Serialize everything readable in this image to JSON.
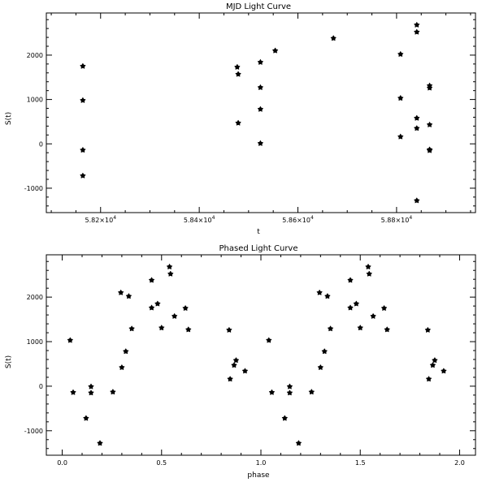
{
  "chart_data": [
    {
      "type": "scatter",
      "title": "MJD Light Curve",
      "xlabel": "t",
      "ylabel": "S(t)",
      "xlim": [
        58090,
        58960
      ],
      "ylim": [
        -1550,
        2950
      ],
      "xticks": [
        {
          "value": 58200,
          "mantissa": "5.82",
          "exp": "4"
        },
        {
          "value": 58400,
          "mantissa": "5.84",
          "exp": "4"
        },
        {
          "value": 58600,
          "mantissa": "5.86",
          "exp": "4"
        },
        {
          "value": 58800,
          "mantissa": "5.88",
          "exp": "4"
        }
      ],
      "yticks": [
        -1000,
        0,
        1000,
        2000
      ],
      "series": [
        {
          "points": [
            [
              58164,
              1750
            ],
            [
              58164,
              980
            ],
            [
              58164,
              -140
            ],
            [
              58164,
              -720
            ],
            [
              58477,
              1730
            ],
            [
              58479,
              1570
            ],
            [
              58479,
              470
            ],
            [
              58524,
              1840
            ],
            [
              58524,
              1270
            ],
            [
              58524,
              780
            ],
            [
              58524,
              10
            ],
            [
              58554,
              2100
            ],
            [
              58672,
              2380
            ],
            [
              58808,
              2020
            ],
            [
              58808,
              1030
            ],
            [
              58808,
              160
            ],
            [
              58841,
              2680
            ],
            [
              58841,
              2520
            ],
            [
              58841,
              580
            ],
            [
              58841,
              350
            ],
            [
              58841,
              -1280
            ],
            [
              58867,
              1310
            ],
            [
              58867,
              1260
            ],
            [
              58867,
              430
            ],
            [
              58867,
              -130
            ],
            [
              58867,
              -150
            ]
          ]
        }
      ]
    },
    {
      "type": "scatter",
      "title": "Phased Light Curve",
      "xlabel": "phase",
      "ylabel": "S(t)",
      "xlim": [
        -0.08,
        2.08
      ],
      "ylim": [
        -1550,
        2950
      ],
      "xticks": [
        {
          "value": 0.0,
          "label": "0.0"
        },
        {
          "value": 0.5,
          "label": "0.5"
        },
        {
          "value": 1.0,
          "label": "1.0"
        },
        {
          "value": 1.5,
          "label": "1.5"
        },
        {
          "value": 2.0,
          "label": "2.0"
        }
      ],
      "yticks": [
        -1000,
        0,
        1000,
        2000
      ],
      "series": [
        {
          "points": [
            [
              0.04,
              1030
            ],
            [
              0.055,
              -140
            ],
            [
              0.12,
              -720
            ],
            [
              0.145,
              -10
            ],
            [
              0.145,
              -150
            ],
            [
              0.19,
              -1280
            ],
            [
              0.255,
              -130
            ],
            [
              0.295,
              2100
            ],
            [
              0.3,
              420
            ],
            [
              0.32,
              780
            ],
            [
              0.335,
              2020
            ],
            [
              0.35,
              1290
            ],
            [
              0.45,
              2380
            ],
            [
              0.45,
              1760
            ],
            [
              0.48,
              1850
            ],
            [
              0.5,
              1310
            ],
            [
              0.54,
              2680
            ],
            [
              0.545,
              2520
            ],
            [
              0.565,
              1570
            ],
            [
              0.62,
              1750
            ],
            [
              0.635,
              1270
            ],
            [
              0.84,
              1260
            ],
            [
              0.845,
              160
            ],
            [
              0.865,
              470
            ],
            [
              0.875,
              580
            ],
            [
              0.92,
              340
            ],
            [
              1.04,
              1030
            ],
            [
              1.055,
              -140
            ],
            [
              1.12,
              -720
            ],
            [
              1.145,
              -10
            ],
            [
              1.145,
              -150
            ],
            [
              1.19,
              -1280
            ],
            [
              1.255,
              -130
            ],
            [
              1.295,
              2100
            ],
            [
              1.3,
              420
            ],
            [
              1.32,
              780
            ],
            [
              1.335,
              2020
            ],
            [
              1.35,
              1290
            ],
            [
              1.45,
              2380
            ],
            [
              1.45,
              1760
            ],
            [
              1.48,
              1850
            ],
            [
              1.5,
              1310
            ],
            [
              1.54,
              2680
            ],
            [
              1.545,
              2520
            ],
            [
              1.565,
              1570
            ],
            [
              1.62,
              1750
            ],
            [
              1.635,
              1270
            ],
            [
              1.84,
              1260
            ],
            [
              1.845,
              160
            ],
            [
              1.865,
              470
            ],
            [
              1.875,
              580
            ],
            [
              1.92,
              340
            ]
          ]
        }
      ]
    }
  ]
}
